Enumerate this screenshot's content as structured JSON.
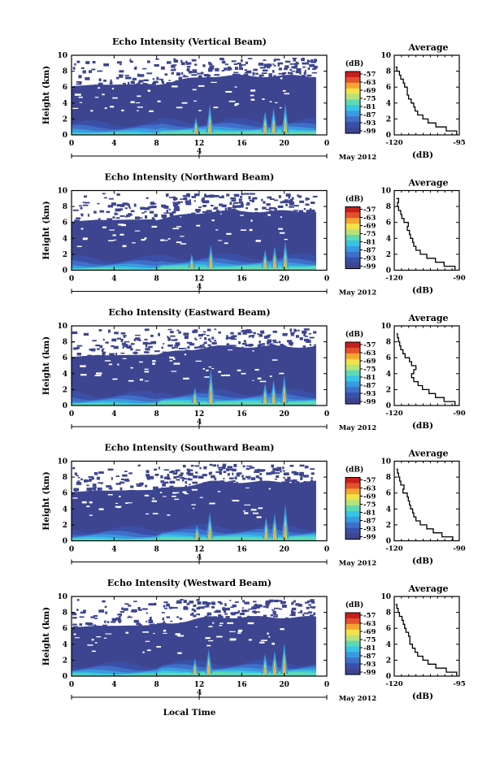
{
  "figure": {
    "x_axis_label": "Local Time",
    "date_label": "May 2012",
    "colors": {
      "background": "#3d4590",
      "colormap": [
        "#3d4590",
        "#3b4fa6",
        "#3f6fc9",
        "#3a9adf",
        "#39c4e6",
        "#5fd8b4",
        "#b7e27a",
        "#f2e24a",
        "#f5a631",
        "#e4512b",
        "#c81e1e"
      ]
    }
  },
  "chart_data": [
    {
      "type": "heatmap",
      "title": "Echo Intensity (Vertical Beam)",
      "xlabel": "",
      "ylabel": "Height (km)",
      "xlim": [
        0,
        24
      ],
      "ylim": [
        0,
        10
      ],
      "x_ticks": [
        "0",
        "4",
        "8",
        "12",
        "16",
        "20",
        "0"
      ],
      "y_ticks": [
        "0",
        "2",
        "4",
        "6",
        "8",
        "10"
      ],
      "day_marker": "4",
      "colorbar": {
        "label": "(dB)",
        "ticks": [
          "-57",
          "-63",
          "-69",
          "-75",
          "-81",
          "-87",
          "-93",
          "-99"
        ]
      },
      "spikes": [
        [
          11.7,
          2.2
        ],
        [
          13.0,
          3.8
        ],
        [
          18.2,
          3.0
        ],
        [
          19.0,
          3.4
        ],
        [
          20.1,
          3.9
        ]
      ],
      "profile": {
        "title": "Average",
        "xlabel": "(dB)",
        "ylabel": "",
        "xlim": [
          -120,
          -95
        ],
        "ylim": [
          0,
          10
        ],
        "x_ticks": [
          "-120",
          "-95"
        ],
        "y_ticks": [
          "0",
          "2",
          "4",
          "6",
          "8",
          "10"
        ],
        "height_km": [
          0,
          0.5,
          1,
          1.5,
          2,
          2.5,
          3,
          3.5,
          4,
          4.5,
          5,
          5.5,
          6,
          6.5,
          7,
          7.5,
          8,
          8.5
        ],
        "value_db": [
          -96,
          -100,
          -104,
          -107,
          -109,
          -111,
          -112,
          -112.5,
          -113.5,
          -114.5,
          -115,
          -115,
          -116,
          -116.5,
          -117.5,
          -118,
          -119,
          -119.5
        ]
      }
    },
    {
      "type": "heatmap",
      "title": "Echo Intensity (Northward Beam)",
      "xlabel": "",
      "ylabel": "Height (km)",
      "xlim": [
        0,
        24
      ],
      "ylim": [
        0,
        10
      ],
      "x_ticks": [
        "0",
        "4",
        "8",
        "12",
        "16",
        "20",
        "0"
      ],
      "y_ticks": [
        "0",
        "2",
        "4",
        "6",
        "8",
        "10"
      ],
      "day_marker": "4",
      "colorbar": {
        "label": "(dB)",
        "ticks": [
          "-57",
          "-63",
          "-69",
          "-75",
          "-81",
          "-87",
          "-93",
          "-99"
        ]
      },
      "spikes": [
        [
          11.3,
          2.0
        ],
        [
          13.1,
          3.2
        ],
        [
          18.2,
          2.6
        ],
        [
          19.1,
          3.0
        ],
        [
          20.1,
          3.6
        ]
      ],
      "profile": {
        "title": "Average",
        "xlabel": "(dB)",
        "ylabel": "",
        "xlim": [
          -120,
          -90
        ],
        "ylim": [
          0,
          10
        ],
        "x_ticks": [
          "-120",
          "-90"
        ],
        "y_ticks": [
          "0",
          "2",
          "4",
          "6",
          "8",
          "10"
        ],
        "height_km": [
          0,
          0.5,
          1,
          1.5,
          2,
          2.5,
          3,
          3.5,
          4,
          4.5,
          5,
          5.5,
          6,
          6.5,
          7,
          7.5,
          8,
          8.5,
          9
        ],
        "value_db": [
          -92,
          -97,
          -101,
          -105,
          -108,
          -110,
          -111,
          -111.5,
          -112.5,
          -113,
          -114,
          -113.5,
          -115.5,
          -116.5,
          -117,
          -118,
          -118.5,
          -118,
          -119
        ]
      }
    },
    {
      "type": "heatmap",
      "title": "Echo Intensity (Eastward Beam)",
      "xlabel": "",
      "ylabel": "Height (km)",
      "xlim": [
        0,
        24
      ],
      "ylim": [
        0,
        10
      ],
      "x_ticks": [
        "0",
        "4",
        "8",
        "12",
        "16",
        "20",
        "0"
      ],
      "y_ticks": [
        "0",
        "2",
        "4",
        "6",
        "8",
        "10"
      ],
      "day_marker": "4",
      "colorbar": {
        "label": "(dB)",
        "ticks": [
          "-57",
          "-63",
          "-69",
          "-75",
          "-81",
          "-87",
          "-93",
          "-99"
        ]
      },
      "spikes": [
        [
          11.6,
          2.3
        ],
        [
          13.1,
          4.6
        ],
        [
          18.2,
          2.8
        ],
        [
          19.0,
          3.2
        ],
        [
          20.0,
          3.8
        ]
      ],
      "profile": {
        "title": "Average",
        "xlabel": "(dB)",
        "ylabel": "",
        "xlim": [
          -120,
          -90
        ],
        "ylim": [
          0,
          10
        ],
        "x_ticks": [
          "-120",
          "-90"
        ],
        "y_ticks": [
          "0",
          "2",
          "4",
          "6",
          "8",
          "10"
        ],
        "height_km": [
          0,
          0.5,
          1,
          1.5,
          2,
          2.5,
          3,
          3.5,
          4,
          4.5,
          5,
          5.5,
          6,
          6.5,
          7,
          7.5,
          8,
          8.5,
          9
        ],
        "value_db": [
          -92,
          -97,
          -101,
          -104,
          -107,
          -109,
          -111,
          -112,
          -111,
          -110,
          -112,
          -113,
          -115,
          -116,
          -117,
          -117.5,
          -118,
          -118.5,
          -119
        ]
      }
    },
    {
      "type": "heatmap",
      "title": "Echo Intensity (Southward Beam)",
      "xlabel": "",
      "ylabel": "Height (km)",
      "xlim": [
        0,
        24
      ],
      "ylim": [
        0,
        10
      ],
      "x_ticks": [
        "0",
        "4",
        "8",
        "12",
        "16",
        "20",
        "0"
      ],
      "y_ticks": [
        "0",
        "2",
        "4",
        "6",
        "8",
        "10"
      ],
      "day_marker": "4",
      "colorbar": {
        "label": "(dB)",
        "ticks": [
          "-57",
          "-63",
          "-69",
          "-75",
          "-81",
          "-87",
          "-93",
          "-99"
        ]
      },
      "spikes": [
        [
          11.8,
          2.0
        ],
        [
          13.0,
          3.6
        ],
        [
          18.3,
          3.0
        ],
        [
          19.1,
          3.4
        ],
        [
          20.1,
          4.6
        ]
      ],
      "profile": {
        "title": "Average",
        "xlabel": "(dB)",
        "ylabel": "",
        "xlim": [
          -120,
          -90
        ],
        "ylim": [
          0,
          10
        ],
        "x_ticks": [
          "-120",
          "-90"
        ],
        "y_ticks": [
          "0",
          "2",
          "4",
          "6",
          "8",
          "10"
        ],
        "height_km": [
          0,
          0.5,
          1,
          1.5,
          2,
          2.5,
          3,
          3.5,
          4,
          4.5,
          5,
          5.5,
          6,
          6.5,
          7,
          7.5,
          8,
          8.5,
          9
        ],
        "value_db": [
          -93,
          -98,
          -102,
          -105,
          -108,
          -110,
          -111,
          -111.5,
          -112.5,
          -113,
          -113.5,
          -114,
          -116,
          -115.5,
          -117,
          -117.5,
          -118,
          -118.5,
          -119
        ]
      }
    },
    {
      "type": "heatmap",
      "title": "Echo Intensity (Westward Beam)",
      "xlabel": "",
      "ylabel": "Height (km)",
      "xlim": [
        0,
        24
      ],
      "ylim": [
        0,
        10
      ],
      "x_ticks": [
        "0",
        "4",
        "8",
        "12",
        "16",
        "20",
        "0"
      ],
      "y_ticks": [
        "0",
        "2",
        "4",
        "6",
        "8",
        "10"
      ],
      "day_marker": "4",
      "colorbar": {
        "label": "(dB)",
        "ticks": [
          "-57",
          "-63",
          "-69",
          "-75",
          "-81",
          "-87",
          "-93",
          "-99"
        ]
      },
      "spikes": [
        [
          11.6,
          2.2
        ],
        [
          12.9,
          3.4
        ],
        [
          18.2,
          2.8
        ],
        [
          19.1,
          3.2
        ],
        [
          20.0,
          4.2
        ]
      ],
      "profile": {
        "title": "Average",
        "xlabel": "(dB)",
        "ylabel": "",
        "xlim": [
          -120,
          -95
        ],
        "ylim": [
          0,
          10
        ],
        "x_ticks": [
          "-120",
          "-95"
        ],
        "y_ticks": [
          "0",
          "2",
          "4",
          "6",
          "8",
          "10"
        ],
        "height_km": [
          0,
          0.5,
          1,
          1.5,
          2,
          2.5,
          3,
          3.5,
          4,
          4.5,
          5,
          5.5,
          6,
          6.5,
          7,
          7.5,
          8,
          8.5,
          9
        ],
        "value_db": [
          -96,
          -100,
          -104,
          -107,
          -109,
          -111,
          -112,
          -113,
          -114,
          -114,
          -114.5,
          -115.5,
          -116,
          -116.5,
          -117,
          -118,
          -118.5,
          -119,
          -119.5
        ]
      }
    }
  ]
}
